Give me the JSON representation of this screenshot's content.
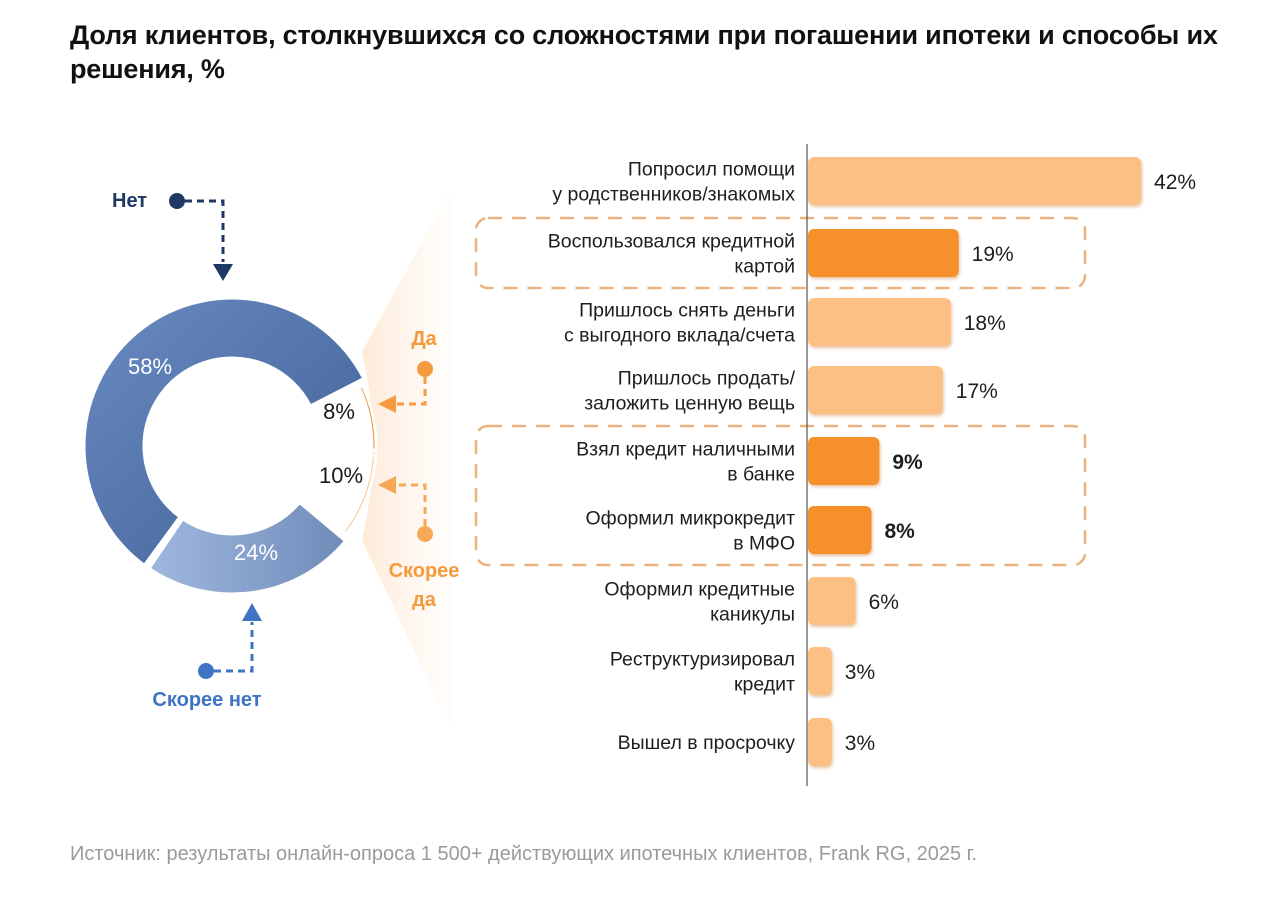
{
  "title": "Доля клиентов, столкнувшихся со сложностями при погашении ипотеки и способы их решения, %",
  "source": "Источник: результаты онлайн-опроса 1 500+ действующих ипотечных клиентов, Frank RG, 2025 г.",
  "colors": {
    "blue_dark": "#4f6fa5",
    "blue_light": "#8ea6d1",
    "orange_strong": "#f5902a",
    "orange_light": "#fdc084",
    "label_net": "#1f3864",
    "label_skoree_net": "#3f74c2",
    "label_orange": "#f39a3c",
    "axis": "#555555",
    "dash_box": "#e5a567"
  },
  "chart_data": [
    {
      "type": "pie",
      "variant": "donut",
      "title": "",
      "slices": [
        {
          "key": "da",
          "label": "Да",
          "value": 8,
          "display": "8%",
          "color_key": "orange_strong"
        },
        {
          "key": "skoree_da",
          "label": "Скорее да",
          "value": 10,
          "display": "10%",
          "color_key": "orange_light"
        },
        {
          "key": "skoree_net",
          "label": "Скорее нет",
          "value": 24,
          "display": "24%",
          "color_key": "blue_light"
        },
        {
          "key": "net",
          "label": "Нет",
          "value": 58,
          "display": "58%",
          "color_key": "blue_dark"
        }
      ],
      "legend": {
        "net": {
          "line1": "Нет"
        },
        "da": {
          "line1": "Да"
        },
        "skoree_da": {
          "line1": "Скорее",
          "line2": "да"
        },
        "skoree_net": {
          "line1": "Скорее нет"
        }
      }
    },
    {
      "type": "bar",
      "orientation": "horizontal",
      "title": "",
      "xlabel": "",
      "ylabel": "",
      "xlim": [
        0,
        42
      ],
      "categories": [
        [
          "Попросил помощи",
          "у родственников/знакомых"
        ],
        [
          "Воспользовался кредитной",
          "картой"
        ],
        [
          "Пришлось снять деньги",
          "с выгодного вклада/счета"
        ],
        [
          "Пришлось продать/",
          "заложить ценную вещь"
        ],
        [
          "Взял кредит наличными",
          "в банке"
        ],
        [
          "Оформил микрокредит",
          "в МФО"
        ],
        [
          "Оформил кредитные",
          "каникулы"
        ],
        [
          "Реструктуризировал",
          "кредит"
        ],
        [
          "Вышел в просрочку"
        ]
      ],
      "values": [
        42,
        19,
        18,
        17,
        9,
        8,
        6,
        3,
        3
      ],
      "value_labels": [
        "42%",
        "19%",
        "18%",
        "17%",
        "9%",
        "8%",
        "6%",
        "3%",
        "3%"
      ],
      "highlighted": [
        false,
        true,
        false,
        false,
        true,
        true,
        false,
        false,
        false
      ],
      "bold_values": [
        false,
        false,
        false,
        false,
        true,
        true,
        false,
        false,
        false
      ],
      "highlight_groups": [
        [
          1
        ],
        [
          4,
          5
        ]
      ]
    }
  ]
}
